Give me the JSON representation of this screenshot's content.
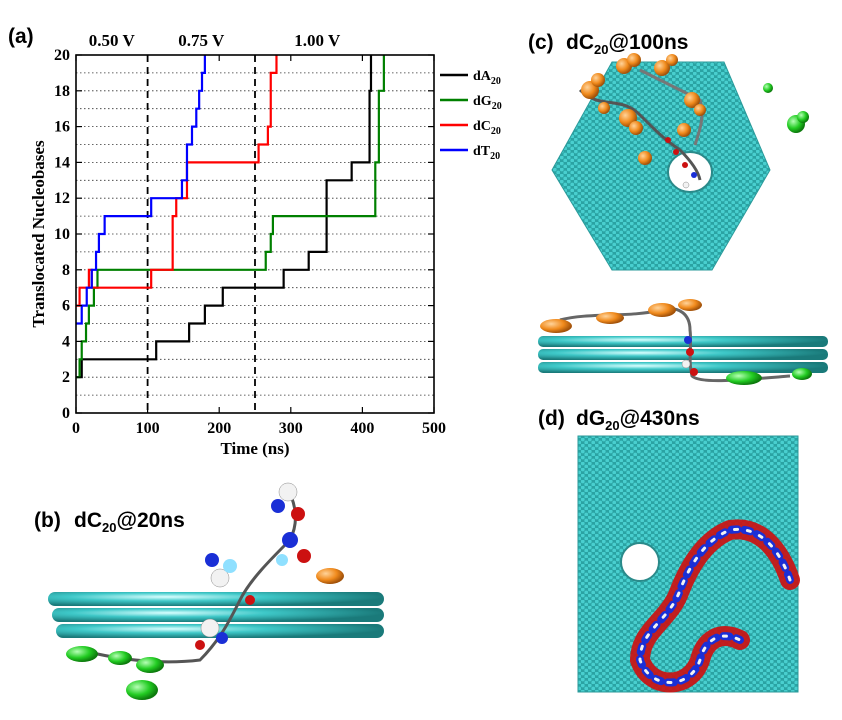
{
  "panels": {
    "a": {
      "label": "(a)"
    },
    "b": {
      "label": "(b)",
      "title_base": "dC",
      "title_sub": "20",
      "title_suffix": "@20ns"
    },
    "c": {
      "label": "(c)",
      "title_base": "dC",
      "title_sub": "20",
      "title_suffix": "@100ns"
    },
    "d": {
      "label": "(d)",
      "title_base": "dG",
      "title_sub": "20",
      "title_suffix": "@430ns"
    }
  },
  "voltages": [
    {
      "text": "0.50 V",
      "x_center": 50
    },
    {
      "text": "0.75 V",
      "x_center": 175
    },
    {
      "text": "1.00 V",
      "x_center": 337
    }
  ],
  "colors": {
    "dA20": "#000000",
    "dG20": "#008000",
    "dC20": "#ff0000",
    "dT20": "#0000ff",
    "graphene": "#3ec8c8",
    "orange_base": "#f08a1c",
    "green_base": "#22cc22",
    "backbone_red": "#cc1111",
    "base_blue": "#1a2fd6",
    "atom_white": "#f2f2f2",
    "atom_cyan": "#8fe0ff"
  },
  "chart_data": {
    "type": "line",
    "title": "",
    "xlabel": "Time (ns)",
    "ylabel": "Translocated Nucleobases",
    "xlim": [
      0,
      500
    ],
    "ylim": [
      0,
      20
    ],
    "xticks": [
      0,
      100,
      200,
      300,
      400,
      500
    ],
    "yticks": [
      0,
      2,
      4,
      6,
      8,
      10,
      12,
      14,
      16,
      18,
      20
    ],
    "grid": "horizontal dotted lines at every integer",
    "voltage_boundaries": [
      100,
      250
    ],
    "legend_position": "right",
    "series": [
      {
        "name": "dA",
        "sub": "20",
        "color_key": "dA20",
        "x": [
          0,
          8,
          110,
          112,
          155,
          158,
          175,
          180,
          200,
          205,
          285,
          290,
          320,
          325,
          345,
          350,
          380,
          385,
          405,
          410,
          412
        ],
        "y": [
          2,
          3,
          3,
          4,
          4,
          5,
          5,
          6,
          6,
          7,
          7,
          8,
          8,
          9,
          9,
          13,
          13,
          14,
          14,
          18,
          20
        ]
      },
      {
        "name": "dG",
        "sub": "20",
        "color_key": "dG20",
        "x": [
          0,
          5,
          8,
          14,
          18,
          25,
          30,
          45,
          260,
          265,
          272,
          275,
          410,
          418,
          423,
          430
        ],
        "y": [
          2,
          3,
          4,
          5,
          6,
          7,
          8,
          8,
          8,
          9,
          10,
          11,
          11,
          14,
          18,
          20
        ]
      },
      {
        "name": "dC",
        "sub": "20",
        "color_key": "dC20",
        "x": [
          0,
          5,
          12,
          18,
          22,
          100,
          105,
          115,
          135,
          140,
          150,
          155,
          250,
          255,
          268,
          272,
          280
        ],
        "y": [
          6,
          7,
          7,
          8,
          7,
          7,
          8,
          8,
          11,
          12,
          12,
          14,
          14,
          15,
          16,
          19,
          20
        ]
      },
      {
        "name": "dT",
        "sub": "20",
        "color_key": "dT20",
        "x": [
          0,
          8,
          15,
          22,
          28,
          32,
          40,
          100,
          105,
          140,
          148,
          155,
          162,
          168,
          172,
          176,
          180
        ],
        "y": [
          5,
          6,
          7,
          8,
          9,
          10,
          11,
          11,
          12,
          12,
          13,
          15,
          16,
          17,
          18,
          19,
          20
        ]
      }
    ]
  }
}
